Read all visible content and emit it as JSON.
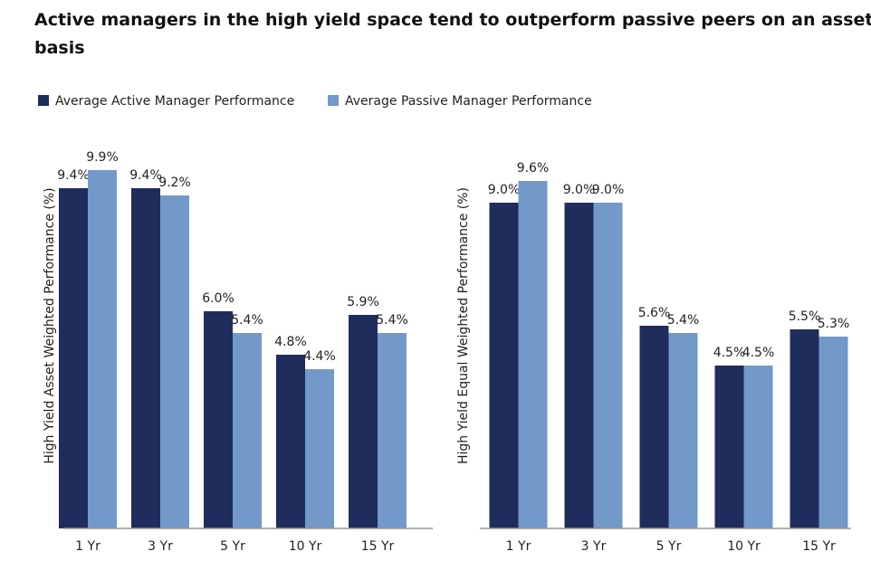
{
  "title": "Active managers in the high yield space tend to outperform passive peers on an asset-weighted basis",
  "chart_data": [
    {
      "type": "bar",
      "y_label": "High Yield Asset Weighted Performance (%)",
      "categories": [
        "1 Yr",
        "3 Yr",
        "5 Yr",
        "10 Yr",
        "15 Yr"
      ],
      "series": [
        {
          "name": "Average Active Manager Performance",
          "color": "#1f2d5c",
          "values": [
            9.4,
            9.4,
            6.0,
            4.8,
            5.9
          ],
          "value_labels": [
            "9.4%",
            "9.4%",
            "6.0%",
            "4.8%",
            "5.9%"
          ]
        },
        {
          "name": "Average Passive Manager Performance",
          "color": "#7299c9",
          "values": [
            9.9,
            9.2,
            5.4,
            4.4,
            5.4
          ],
          "value_labels": [
            "9.9%",
            "9.2%",
            "5.4%",
            "4.4%",
            "5.4%"
          ]
        }
      ],
      "ylim": [
        0,
        10
      ]
    },
    {
      "type": "bar",
      "y_label": "High Yield Equal Weighted Performance (%)",
      "categories": [
        "1 Yr",
        "3 Yr",
        "5 Yr",
        "10 Yr",
        "15 Yr"
      ],
      "series": [
        {
          "color": "#1f2d5c",
          "values": [
            9.0,
            9.0,
            5.6,
            4.5,
            5.5
          ],
          "value_labels": [
            "9.0%",
            "9.0%",
            "5.6%",
            "4.5%",
            "5.5%"
          ]
        },
        {
          "color": "#7299c9",
          "values": [
            9.6,
            9.0,
            5.4,
            4.5,
            5.3
          ],
          "value_labels": [
            "9.6%",
            "9.0%",
            "5.4%",
            "4.5%",
            "5.3%"
          ]
        }
      ],
      "ylim": [
        0,
        10
      ]
    }
  ]
}
